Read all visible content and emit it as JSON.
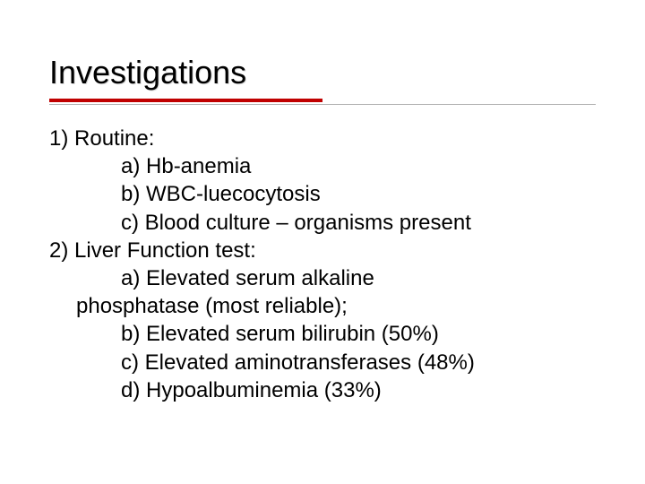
{
  "title": "Investigations",
  "colors": {
    "heading_underline": "#c00000",
    "subline": "#b0b0b0",
    "text": "#000000",
    "background": "#ffffff"
  },
  "typography": {
    "title_fontsize": 36,
    "body_fontsize": 24,
    "font_family": "Verdana"
  },
  "items": [
    {
      "level": 1,
      "text": "1) Routine:"
    },
    {
      "level": 2,
      "text": "a) Hb-anemia"
    },
    {
      "level": 2,
      "text": "b) WBC-luecocytosis"
    },
    {
      "level": 2,
      "text": "c) Blood culture – organisms present"
    },
    {
      "level": 1,
      "text": "2) Liver Function test:"
    },
    {
      "level": 2,
      "text": "a) Elevated serum alkaline"
    },
    {
      "level": 3,
      "text": "phosphatase (most reliable);"
    },
    {
      "level": 2,
      "text": "b) Elevated serum bilirubin (50%)"
    },
    {
      "level": 2,
      "text": "c) Elevated aminotransferases (48%)"
    },
    {
      "level": 2,
      "text": "d) Hypoalbuminemia (33%)"
    }
  ]
}
